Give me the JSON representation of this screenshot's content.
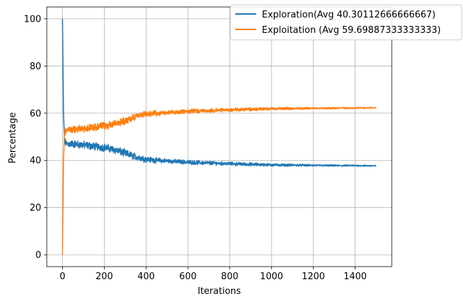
{
  "chart_data": {
    "type": "line",
    "title": "",
    "xlabel": "Iterations",
    "ylabel": "Percentage",
    "xlim": [
      -75,
      1575
    ],
    "ylim": [
      -5,
      105
    ],
    "xticks": [
      0,
      200,
      400,
      600,
      800,
      1000,
      1200,
      1400
    ],
    "yticks": [
      0,
      20,
      40,
      60,
      80,
      100
    ],
    "grid": true,
    "legend_position": "top-right",
    "series": [
      {
        "name": "Exploration(Avg 40.30112666666667)",
        "color": "#1f77b4",
        "points": [
          [
            0,
            100
          ],
          [
            5,
            60
          ],
          [
            10,
            48
          ],
          [
            20,
            47
          ],
          [
            50,
            47
          ],
          [
            100,
            46.5
          ],
          [
            150,
            46
          ],
          [
            200,
            45.5
          ],
          [
            250,
            44.5
          ],
          [
            300,
            43
          ],
          [
            350,
            41.5
          ],
          [
            400,
            40.5
          ],
          [
            450,
            40
          ],
          [
            500,
            39.8
          ],
          [
            600,
            39.2
          ],
          [
            700,
            38.9
          ],
          [
            800,
            38.6
          ],
          [
            900,
            38.3
          ],
          [
            1000,
            38.1
          ],
          [
            1100,
            38
          ],
          [
            1200,
            37.9
          ],
          [
            1300,
            37.8
          ],
          [
            1400,
            37.8
          ],
          [
            1500,
            37.7
          ]
        ],
        "noise": [
          [
            0,
            1.2
          ],
          [
            300,
            1.2
          ],
          [
            500,
            0.7
          ],
          [
            900,
            0.5
          ],
          [
            1200,
            0.3
          ],
          [
            1500,
            0.2
          ]
        ]
      },
      {
        "name": "Exploitation (Avg 59.69887333333333)",
        "color": "#ff7f0e",
        "points": [
          [
            0,
            0
          ],
          [
            5,
            40
          ],
          [
            10,
            52
          ],
          [
            20,
            53
          ],
          [
            50,
            53
          ],
          [
            100,
            53.5
          ],
          [
            150,
            54
          ],
          [
            200,
            54.5
          ],
          [
            250,
            55.5
          ],
          [
            300,
            57
          ],
          [
            350,
            58.5
          ],
          [
            400,
            59.5
          ],
          [
            450,
            60
          ],
          [
            500,
            60.2
          ],
          [
            600,
            60.8
          ],
          [
            700,
            61.1
          ],
          [
            800,
            61.4
          ],
          [
            900,
            61.7
          ],
          [
            1000,
            61.9
          ],
          [
            1100,
            62
          ],
          [
            1200,
            62.1
          ],
          [
            1300,
            62.2
          ],
          [
            1400,
            62.2
          ],
          [
            1500,
            62.3
          ]
        ],
        "noise": [
          [
            0,
            1.2
          ],
          [
            300,
            1.2
          ],
          [
            500,
            0.7
          ],
          [
            900,
            0.5
          ],
          [
            1200,
            0.3
          ],
          [
            1500,
            0.2
          ]
        ]
      }
    ]
  }
}
